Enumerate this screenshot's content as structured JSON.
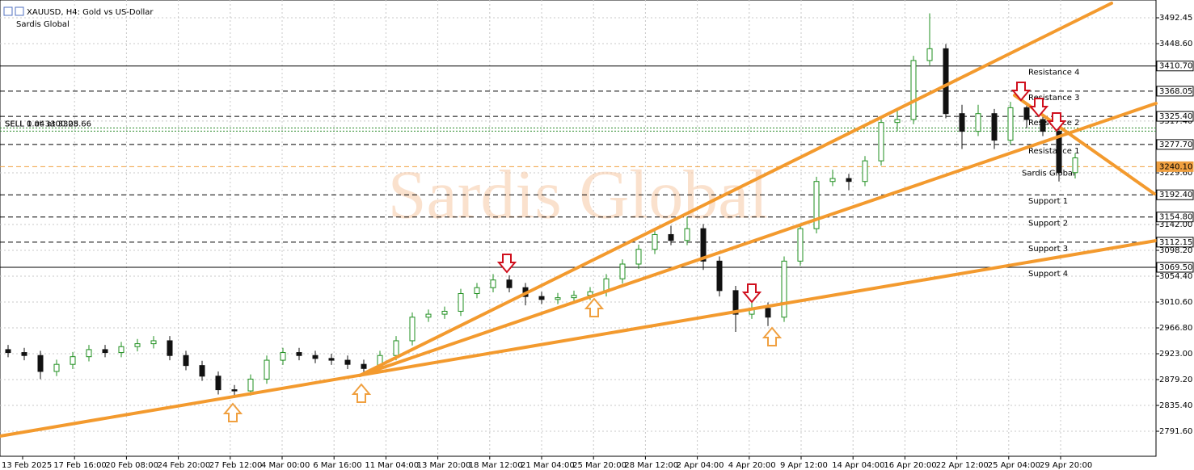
{
  "chart_data": {
    "type": "candlestick",
    "title": "XAUUSD, H4:  Gold vs US-Dollar",
    "subtitle": "Sardis Global",
    "watermark": "Sardis Global",
    "ylim": [
      2749.2,
      3522.6
    ],
    "yticks": [
      3492.45,
      {
        "value": 3448.6,
        "label": "3448.60"
      },
      {
        "value": 3317.4,
        "label": "3317.40"
      },
      {
        "value": 3229.6,
        "label": "3229.60"
      },
      {
        "value": 3142,
        "label": "3142.00"
      },
      {
        "value": 3098.2,
        "label": "3098.20"
      },
      {
        "value": 3054.4,
        "label": "3054.40"
      },
      {
        "value": 3010.6,
        "label": "3010.60"
      },
      {
        "value": 2966.8,
        "label": "2966.80"
      },
      {
        "value": 2923,
        "label": "2923.00"
      },
      {
        "value": 2879.2,
        "label": "2879.20"
      },
      {
        "value": 2835.4,
        "label": "2835.40"
      },
      {
        "value": 2791.6,
        "label": "2791.60"
      }
    ],
    "grid": true,
    "x_labels": [
      "13 Feb 2025",
      "17 Feb 16:00",
      "20 Feb 08:00",
      "24 Feb 20:00",
      "27 Feb 12:00",
      "4 Mar 00:00",
      "6 Mar 16:00",
      "11 Mar 04:00",
      "13 Mar 20:00",
      "18 Mar 12:00",
      "21 Mar 04:00",
      "25 Mar 20:00",
      "28 Mar 12:00",
      "2 Apr 04:00",
      "4 Apr 20:00",
      "9 Apr 12:00",
      "14 Apr 04:00",
      "16 Apr 20:00",
      "22 Apr 12:00",
      "25 Apr 04:00",
      "29 Apr 20:00"
    ],
    "bull_color": "#1f8f1f",
    "bear_color": "#111111",
    "open": [
      2930,
      2925,
      2920,
      2893,
      2905,
      2918,
      2930,
      2925,
      2935,
      2940,
      2945,
      2920,
      2903,
      2885,
      2862,
      2860,
      2880,
      2912,
      2925,
      2920,
      2915,
      2912,
      2905,
      2898,
      2920,
      2945,
      2985,
      2990,
      2995,
      3025,
      3035,
      3048,
      3035,
      3020,
      3015,
      3018,
      3022,
      3028,
      3050,
      3075,
      3100,
      3125,
      3115,
      3135,
      3080,
      3030,
      2990,
      3000,
      2985,
      3080,
      3135,
      3215,
      3220,
      3215,
      3250,
      3315,
      3320,
      3420,
      3440,
      3330,
      3300,
      3330,
      3285,
      3340,
      3320,
      3300,
      3230
    ],
    "high": [
      2938,
      2933,
      2928,
      2913,
      2926,
      2938,
      2938,
      2943,
      2948,
      2953,
      2953,
      2928,
      2911,
      2893,
      2870,
      2888,
      2920,
      2933,
      2933,
      2928,
      2923,
      2920,
      2913,
      2928,
      2953,
      2993,
      2998,
      3003,
      3033,
      3043,
      3058,
      3056,
      3043,
      3028,
      3026,
      3030,
      3036,
      3058,
      3083,
      3108,
      3133,
      3140,
      3155,
      3143,
      3088,
      3038,
      3015,
      3010,
      3088,
      3143,
      3223,
      3235,
      3228,
      3258,
      3323,
      3335,
      3428,
      3500,
      3448,
      3345,
      3345,
      3338,
      3350,
      3348,
      3328,
      3308,
      3263
    ],
    "low": [
      2917,
      2912,
      2880,
      2885,
      2897,
      2910,
      2917,
      2917,
      2927,
      2932,
      2912,
      2895,
      2877,
      2854,
      2848,
      2852,
      2872,
      2904,
      2912,
      2907,
      2904,
      2897,
      2890,
      2890,
      2912,
      2937,
      2977,
      2982,
      2987,
      3017,
      3027,
      3027,
      3005,
      3007,
      3007,
      3010,
      3014,
      3020,
      3042,
      3067,
      3092,
      3107,
      3107,
      3065,
      3020,
      2960,
      2982,
      2970,
      2977,
      3072,
      3127,
      3207,
      3200,
      3207,
      3242,
      3300,
      3312,
      3412,
      3322,
      3270,
      3292,
      3270,
      3277,
      3305,
      3292,
      3215,
      3220
    ],
    "close": [
      2925,
      2920,
      2893,
      2905,
      2918,
      2930,
      2925,
      2935,
      2940,
      2945,
      2920,
      2903,
      2885,
      2862,
      2860,
      2880,
      2912,
      2925,
      2920,
      2915,
      2912,
      2905,
      2898,
      2920,
      2945,
      2985,
      2990,
      2995,
      3025,
      3035,
      3048,
      3035,
      3020,
      3015,
      3018,
      3022,
      3028,
      3050,
      3075,
      3100,
      3125,
      3115,
      3135,
      3080,
      3030,
      2990,
      3000,
      2985,
      3080,
      3135,
      3215,
      3220,
      3215,
      3250,
      3315,
      3320,
      3420,
      3440,
      3330,
      3300,
      3330,
      3285,
      3340,
      3320,
      3300,
      3230,
      3255
    ],
    "levels": [
      {
        "name": "Resistance 4",
        "value": 3410.7,
        "label": "3410.70",
        "dash": false,
        "color": "#000000"
      },
      {
        "name": "Resistance 3",
        "value": 3368.05,
        "dash": true,
        "color": "#000000"
      },
      {
        "name": "Resistance 2",
        "value": 3325.4,
        "label": "3325.40",
        "dash": true,
        "color": "#000000"
      },
      {
        "name": "Resistance 1",
        "value": 3277.7,
        "label": "3277.70",
        "dash": true,
        "color": "#000000"
      },
      {
        "name": "Sardis Global",
        "value": 3240.1,
        "label": "3240.10",
        "dash": true,
        "color": "#f0a040"
      },
      {
        "name": "Support 1",
        "value": 3192.4,
        "label": "3192.40",
        "dash": true,
        "color": "#000000"
      },
      {
        "name": "Support 2",
        "value": 3154.8,
        "label": "3154.80",
        "dash": true,
        "color": "#000000"
      },
      {
        "name": "Support 3",
        "value": 3112.15,
        "dash": true,
        "color": "#000000"
      },
      {
        "name": "Support 4",
        "value": 3069.5,
        "label": "3069.50",
        "dash": false,
        "color": "#000000"
      }
    ],
    "orders": [
      {
        "text": "SELL 0.04 at 3305.66",
        "value": 3305.66
      },
      {
        "text": "SELL 1 at 3300.28",
        "value": 3300.28
      }
    ]
  }
}
